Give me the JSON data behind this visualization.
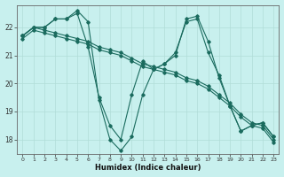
{
  "xlabel": "Humidex (Indice chaleur)",
  "background_color": "#c8f0ee",
  "grid_color": "#b0ddd8",
  "line_color": "#1a6b5e",
  "xlim": [
    -0.5,
    23.5
  ],
  "ylim": [
    17.5,
    22.8
  ],
  "yticks": [
    18,
    19,
    20,
    21,
    22
  ],
  "xticks": [
    0,
    1,
    2,
    3,
    4,
    5,
    6,
    7,
    8,
    9,
    10,
    11,
    12,
    13,
    14,
    15,
    16,
    17,
    18,
    19,
    20,
    21,
    22,
    23
  ],
  "lines": [
    {
      "x": [
        0,
        1,
        2,
        3,
        4,
        5,
        6,
        7,
        8,
        9,
        10,
        11,
        12,
        13,
        14,
        15,
        16,
        17,
        18,
        19,
        20,
        21,
        22,
        23
      ],
      "y": [
        21.7,
        22.0,
        21.9,
        21.8,
        21.7,
        21.6,
        21.5,
        21.3,
        21.2,
        21.1,
        20.9,
        20.7,
        20.6,
        20.5,
        20.4,
        20.2,
        20.1,
        19.9,
        19.6,
        19.3,
        18.9,
        18.6,
        18.5,
        18.0
      ]
    },
    {
      "x": [
        0,
        1,
        2,
        3,
        4,
        5,
        6,
        7,
        8,
        9,
        10,
        11,
        12,
        13,
        14,
        15,
        16,
        17,
        18,
        19,
        20,
        21,
        22,
        23
      ],
      "y": [
        21.6,
        21.9,
        21.8,
        21.7,
        21.6,
        21.5,
        21.4,
        21.2,
        21.1,
        21.0,
        20.8,
        20.6,
        20.5,
        20.4,
        20.3,
        20.1,
        20.0,
        19.8,
        19.5,
        19.2,
        18.8,
        18.5,
        18.4,
        17.9
      ]
    },
    {
      "x": [
        0,
        1,
        2,
        3,
        4,
        5,
        6,
        7,
        8,
        9,
        10,
        11,
        12,
        13,
        14,
        15,
        16,
        17,
        18,
        19,
        20,
        21,
        22,
        23
      ],
      "y": [
        21.7,
        22.0,
        22.0,
        22.3,
        22.3,
        22.5,
        21.3,
        19.5,
        18.5,
        18.0,
        19.6,
        20.8,
        20.5,
        20.7,
        21.0,
        22.3,
        22.4,
        21.5,
        20.2,
        19.2,
        18.3,
        18.5,
        18.6,
        18.1
      ]
    },
    {
      "x": [
        0,
        1,
        2,
        3,
        4,
        5,
        6,
        7,
        8,
        9,
        10,
        11,
        12,
        13,
        14,
        15,
        16,
        17,
        18,
        19,
        20,
        21,
        22,
        23
      ],
      "y": [
        21.7,
        22.0,
        22.0,
        22.3,
        22.3,
        22.6,
        22.2,
        19.4,
        18.0,
        17.6,
        18.1,
        19.6,
        20.5,
        20.7,
        21.1,
        22.2,
        22.3,
        21.1,
        20.3,
        19.2,
        18.3,
        18.5,
        18.6,
        18.1
      ]
    }
  ]
}
